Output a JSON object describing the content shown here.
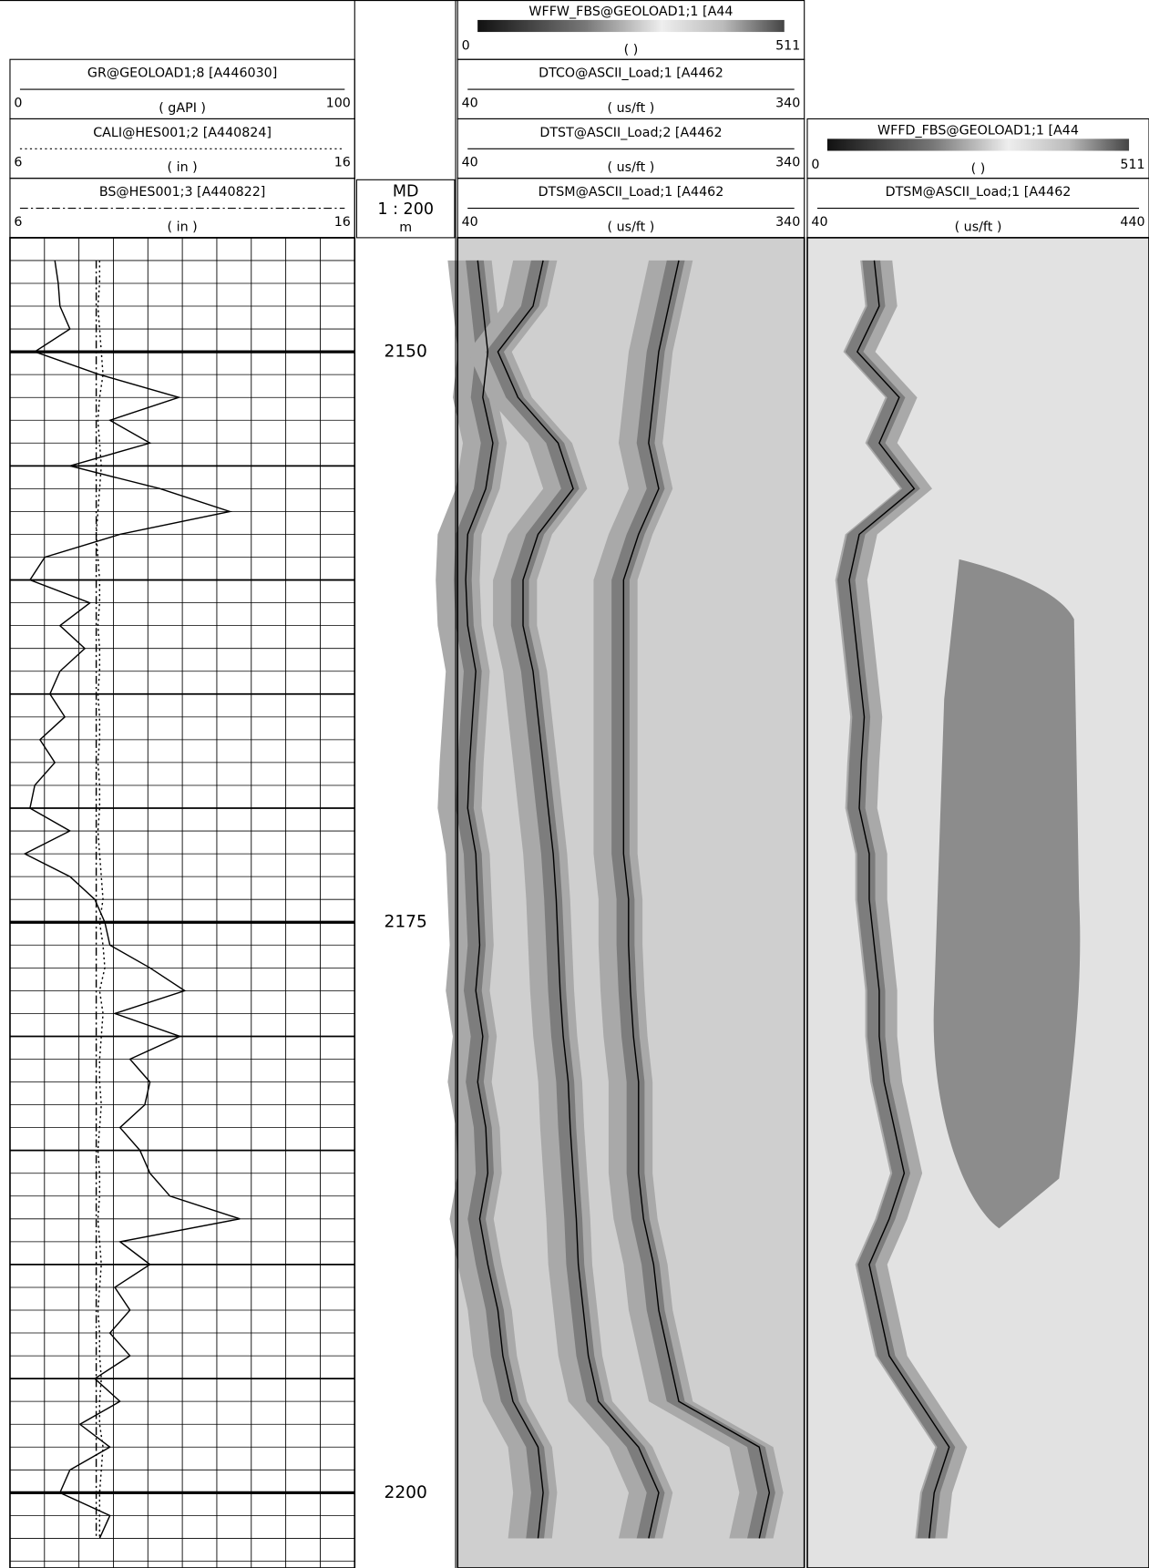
{
  "depth_track": {
    "title": "MD",
    "scale": "1 : 200",
    "unit": "m"
  },
  "chart_data": [
    {
      "type": "line",
      "ylim": [
        2145,
        2203.3
      ],
      "yticks": [
        2150,
        2175,
        2200
      ],
      "grid": true,
      "y": [
        2146,
        2147,
        2148,
        2149,
        2150,
        2151,
        2152,
        2153,
        2154,
        2155,
        2156,
        2157,
        2158,
        2159,
        2160,
        2161,
        2162,
        2163,
        2164,
        2165,
        2166,
        2167,
        2168,
        2169,
        2170,
        2171,
        2172,
        2173,
        2174,
        2175,
        2176,
        2177,
        2178,
        2179,
        2180,
        2181,
        2182,
        2183,
        2184,
        2185,
        2186,
        2187,
        2188,
        2189,
        2190,
        2191,
        2192,
        2193,
        2194,
        2195,
        2196,
        2197,
        2198,
        2199,
        2200,
        2201,
        2202
      ],
      "series": [
        {
          "name": "GR@GEOLOAD1;8 [A446030]",
          "unit": "( gAPI )",
          "xlim": [
            0,
            100
          ],
          "color": "#000000",
          "style": "solid",
          "values": [
            13,
            14,
            14.5,
            17.4,
            7.2,
            26,
            49,
            29,
            40.6,
            17.4,
            43.5,
            63.8,
            31.9,
            10.1,
            5.8,
            23.2,
            14.5,
            21.7,
            14.5,
            11.6,
            15.9,
            8.7,
            13,
            7.2,
            5.8,
            17.4,
            4.3,
            17.4,
            24.6,
            27.5,
            29,
            40.6,
            50.7,
            30.4,
            49.3,
            34.8,
            40.6,
            39.1,
            31.9,
            37.7,
            40.6,
            46.4,
            66.7,
            31.9,
            40.6,
            30.4,
            34.8,
            29,
            34.8,
            24.6,
            31.9,
            20.3,
            29,
            17.4,
            14.5,
            29,
            26
          ]
        },
        {
          "name": "CALI@HES001;2 [A440824]",
          "unit": "( in )",
          "xlim": [
            6,
            16
          ],
          "color": "#000000",
          "style": "dotted",
          "values": [
            8.6,
            8.6,
            8.55,
            8.6,
            8.65,
            8.7,
            8.6,
            8.55,
            8.6,
            8.65,
            8.6,
            8.55,
            8.5,
            8.55,
            8.6,
            8.6,
            8.55,
            8.6,
            8.6,
            8.55,
            8.6,
            8.6,
            8.55,
            8.6,
            8.6,
            8.55,
            8.6,
            8.65,
            8.7,
            8.6,
            8.7,
            8.75,
            8.6,
            8.7,
            8.65,
            8.6,
            8.6,
            8.65,
            8.6,
            8.55,
            8.6,
            8.6,
            8.55,
            8.6,
            8.65,
            8.6,
            8.55,
            8.6,
            8.6,
            8.65,
            8.6,
            8.6,
            8.7,
            8.65,
            8.6,
            8.6,
            8.6
          ]
        },
        {
          "name": "BS@HES001;3 [A440822]",
          "unit": "( in )",
          "xlim": [
            6,
            16
          ],
          "color": "#000000",
          "style": "dash-dot",
          "values": [
            8.5,
            8.5,
            8.5,
            8.5,
            8.5,
            8.5,
            8.5,
            8.5,
            8.5,
            8.5,
            8.5,
            8.5,
            8.5,
            8.5,
            8.5,
            8.5,
            8.5,
            8.5,
            8.5,
            8.5,
            8.5,
            8.5,
            8.5,
            8.5,
            8.5,
            8.5,
            8.5,
            8.5,
            8.5,
            8.5,
            8.5,
            8.5,
            8.5,
            8.5,
            8.5,
            8.5,
            8.5,
            8.5,
            8.5,
            8.5,
            8.5,
            8.5,
            8.5,
            8.5,
            8.5,
            8.5,
            8.5,
            8.5,
            8.5,
            8.5,
            8.5,
            8.5,
            8.5,
            8.5,
            8.5,
            8.5,
            8.5
          ]
        }
      ]
    },
    {
      "type": "line",
      "ylim": [
        2145,
        2203.3
      ],
      "image": {
        "name": "WFFW_FBS@GEOLOAD1;1 [A44",
        "unit": "( )",
        "range": [
          0,
          511
        ]
      },
      "y": [
        2146,
        2148,
        2150,
        2152,
        2154,
        2156,
        2158,
        2160,
        2162,
        2164,
        2166,
        2168,
        2170,
        2172,
        2174,
        2176,
        2178,
        2180,
        2182,
        2184,
        2186,
        2188,
        2190,
        2192,
        2194,
        2196,
        2198,
        2200,
        2202
      ],
      "series": [
        {
          "name": "DTCO@ASCII_Load;1 [A4462",
          "unit": "( us/ft )",
          "xlim": [
            40,
            340
          ],
          "color": "#000000",
          "style": "solid",
          "values": [
            57.4,
            61.8,
            66.1,
            61.8,
            70.5,
            64.4,
            48.7,
            47,
            48.7,
            55.7,
            53,
            50.4,
            48.7,
            55.7,
            57.4,
            59.1,
            55.7,
            61.8,
            57.4,
            64.4,
            66.1,
            59.1,
            66.1,
            74.8,
            79.2,
            87.9,
            109.6,
            114,
            109.6
          ]
        },
        {
          "name": "DTST@ASCII_Load;2 [A4462",
          "unit": "( us/ft )",
          "xlim": [
            40,
            340
          ],
          "color": "#000000",
          "style": "solid",
          "values": [
            114,
            105.3,
            74.8,
            92.2,
            127,
            140,
            109.6,
            96.6,
            96.6,
            105.3,
            109.6,
            114,
            118.3,
            122.7,
            125.3,
            127,
            128.7,
            131.4,
            135.7,
            137.4,
            140,
            142.7,
            144.4,
            148.8,
            153.1,
            161.8,
            196.6,
            214,
            205.3
          ]
        },
        {
          "name": "DTSM@ASCII_Load;1 [A4462",
          "unit": "( us/ft )",
          "xlim": [
            40,
            340
          ],
          "color": "#000000",
          "style": "solid",
          "values": [
            231.4,
            222.7,
            214,
            209.6,
            205.3,
            214,
            196.6,
            183.6,
            183.6,
            183.6,
            183.6,
            183.6,
            183.6,
            183.6,
            187.9,
            187.9,
            189.6,
            192.2,
            196.6,
            196.6,
            196.6,
            200.9,
            209.6,
            214,
            222.7,
            231.4,
            301,
            309.7,
            301
          ]
        }
      ]
    },
    {
      "type": "line",
      "ylim": [
        2145,
        2203.3
      ],
      "image": {
        "name": "WFFD_FBS@GEOLOAD1;1 [A44",
        "unit": "( )",
        "range": [
          0,
          511
        ]
      },
      "y": [
        2146,
        2148,
        2150,
        2152,
        2154,
        2156,
        2158,
        2160,
        2162,
        2164,
        2166,
        2168,
        2170,
        2172,
        2174,
        2176,
        2178,
        2180,
        2182,
        2184,
        2186,
        2188,
        2190,
        2192,
        2194,
        2196,
        2198,
        2200,
        2202
      ],
      "series": [
        {
          "name": "DTSM@ASCII_Load;1 [A4462",
          "unit": "( us/ft )",
          "xlim": [
            40,
            440
          ],
          "color": "#000000",
          "style": "solid",
          "values": [
            118.4,
            124.2,
            98.5,
            147.6,
            124.2,
            165.1,
            100.8,
            89.1,
            95,
            100.8,
            106.7,
            103.2,
            100.8,
            112.5,
            112.5,
            118.4,
            124.2,
            124.2,
            130.1,
            141.8,
            153.5,
            135.9,
            112.5,
            124.2,
            135.9,
            171,
            206.1,
            188.5,
            182.7
          ]
        }
      ]
    }
  ]
}
